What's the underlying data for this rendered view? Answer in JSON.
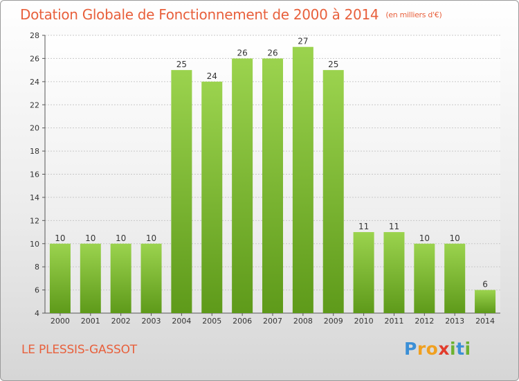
{
  "header": {
    "title": "Dotation Globale de Fonctionnement de 2000 à 2014",
    "unit": "(en milliers d'€)"
  },
  "footer": {
    "commune": "LE PLESSIS-GASSOT",
    "logo": "Proxiti"
  },
  "colors": {
    "bar_light": "#9bd34e",
    "bar_dark": "#5e9a1a",
    "title": "#e8603c",
    "grid": "#c8c8c8"
  },
  "chart_data": {
    "type": "bar",
    "categories": [
      "2000",
      "2001",
      "2002",
      "2003",
      "2004",
      "2005",
      "2006",
      "2007",
      "2008",
      "2009",
      "2010",
      "2011",
      "2012",
      "2013",
      "2014"
    ],
    "values": [
      10,
      10,
      10,
      10,
      25,
      24,
      26,
      26,
      27,
      25,
      11,
      11,
      10,
      10,
      6
    ],
    "ylim": [
      4,
      28
    ],
    "yticks": [
      4,
      6,
      8,
      10,
      12,
      14,
      16,
      18,
      20,
      22,
      24,
      26,
      28
    ],
    "grid": true,
    "data_labels": true
  }
}
